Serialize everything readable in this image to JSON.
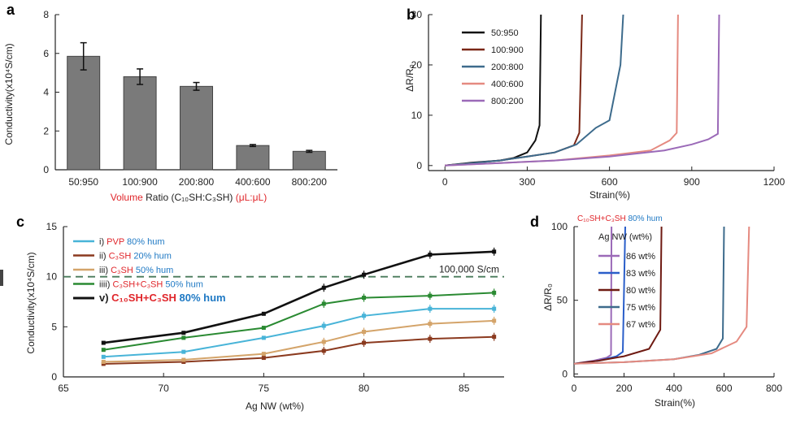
{
  "chart_data": [
    {
      "panel": "a",
      "type": "bar",
      "categories": [
        "50:950",
        "100:900",
        "200:800",
        "400:600",
        "800:200"
      ],
      "values": [
        5.85,
        4.8,
        4.3,
        1.25,
        0.95
      ],
      "errors": [
        0.7,
        0.4,
        0.2,
        0.05,
        0.05
      ],
      "ylabel": "Conductivity(x10⁴S/cm)",
      "xlabel_parts": [
        {
          "text": "Volume",
          "color": "#e0262b"
        },
        {
          "text": " Ratio (C₁₀SH:C₃SH) ",
          "color": "#222222"
        },
        {
          "text": "(μL:μL)",
          "color": "#e0262b"
        }
      ],
      "ylim": [
        0,
        8
      ],
      "yticks": [
        0,
        2,
        4,
        6,
        8
      ],
      "bar_color": "#7a7a7a"
    },
    {
      "panel": "b",
      "type": "line",
      "xlabel": "Strain(%)",
      "ylabel": "ΔR/R₀",
      "xlim": [
        -60,
        1200
      ],
      "ylim": [
        -1,
        30
      ],
      "xticks": [
        0,
        300,
        600,
        900,
        1200
      ],
      "yticks": [
        0,
        10,
        20,
        30
      ],
      "series": [
        {
          "name": "50:950",
          "color": "#111111",
          "points": [
            [
              0,
              0
            ],
            [
              100,
              0.6
            ],
            [
              200,
              1
            ],
            [
              250,
              1.5
            ],
            [
              300,
              2.6
            ],
            [
              330,
              5
            ],
            [
              345,
              8
            ],
            [
              350,
              30
            ]
          ]
        },
        {
          "name": "100:900",
          "color": "#7a2716",
          "points": [
            [
              0,
              0
            ],
            [
              100,
              0.5
            ],
            [
              200,
              1
            ],
            [
              300,
              1.8
            ],
            [
              400,
              2.6
            ],
            [
              470,
              4
            ],
            [
              490,
              6.5
            ],
            [
              500,
              30
            ]
          ]
        },
        {
          "name": "200:800",
          "color": "#3d6b8c",
          "points": [
            [
              0,
              0
            ],
            [
              100,
              0.5
            ],
            [
              200,
              1
            ],
            [
              300,
              1.8
            ],
            [
              400,
              2.6
            ],
            [
              480,
              4.2
            ],
            [
              550,
              7.5
            ],
            [
              600,
              9
            ],
            [
              640,
              20
            ],
            [
              650,
              30
            ]
          ]
        },
        {
          "name": "400:600",
          "color": "#e58a80",
          "points": [
            [
              0,
              0
            ],
            [
              200,
              0.5
            ],
            [
              400,
              1
            ],
            [
              600,
              2
            ],
            [
              750,
              3
            ],
            [
              820,
              5
            ],
            [
              845,
              6.5
            ],
            [
              850,
              30
            ]
          ]
        },
        {
          "name": "800:200",
          "color": "#9b6ab8",
          "points": [
            [
              0,
              0
            ],
            [
              200,
              0.5
            ],
            [
              400,
              1
            ],
            [
              600,
              1.8
            ],
            [
              800,
              3
            ],
            [
              900,
              4.2
            ],
            [
              960,
              5.2
            ],
            [
              995,
              6.3
            ],
            [
              1000,
              30
            ]
          ]
        }
      ]
    },
    {
      "panel": "c",
      "type": "line",
      "xlabel": "Ag NW (wt%)",
      "ylabel": "Conductivity(x10⁴S/cm)",
      "xlim": [
        65,
        87
      ],
      "ylim": [
        0,
        15
      ],
      "xticks": [
        65,
        70,
        75,
        80,
        85
      ],
      "yticks": [
        0,
        5,
        10,
        15
      ],
      "x": [
        67,
        71,
        75,
        78,
        80,
        83.3,
        86.5
      ],
      "reference": {
        "y": 10,
        "label": "100,000 S/cm",
        "color": "#4a7a5c"
      },
      "series": [
        {
          "id": "i",
          "label_parts": [
            {
              "text": "PVP",
              "color": "#e0262b"
            },
            {
              "text": " 80% hum",
              "color": "#1f79c4"
            }
          ],
          "color": "#48b4d8",
          "values": [
            2,
            2.5,
            3.9,
            5.1,
            6.1,
            6.8,
            6.8
          ]
        },
        {
          "id": "ii",
          "label_parts": [
            {
              "text": "C₃SH",
              "color": "#e0262b"
            },
            {
              "text": " 20% hum",
              "color": "#1f79c4"
            }
          ],
          "color": "#8b3a1f",
          "values": [
            1.3,
            1.5,
            1.9,
            2.6,
            3.4,
            3.8,
            4
          ]
        },
        {
          "id": "iii",
          "label_parts": [
            {
              "text": "C₃SH",
              "color": "#e0262b"
            },
            {
              "text": " 50% hum",
              "color": "#1f79c4"
            }
          ],
          "color": "#d4a46a",
          "values": [
            1.5,
            1.7,
            2.3,
            3.5,
            4.5,
            5.3,
            5.6
          ]
        },
        {
          "id": "iiii",
          "label_parts": [
            {
              "text": "C₃SH+C₃SH",
              "color": "#e0262b"
            },
            {
              "text": " 50% hum",
              "color": "#1f79c4"
            }
          ],
          "color": "#2a8a32",
          "values": [
            2.7,
            3.9,
            4.9,
            7.3,
            7.9,
            8.1,
            8.4
          ]
        },
        {
          "id": "v",
          "label_parts": [
            {
              "text": "C₁₀SH+C₃SH",
              "color": "#e0262b"
            },
            {
              "text": " 80% hum",
              "color": "#1f79c4"
            }
          ],
          "color": "#111111",
          "bold": true,
          "values": [
            3.4,
            4.4,
            6.3,
            8.9,
            10.2,
            12.2,
            12.5
          ]
        }
      ]
    },
    {
      "panel": "d",
      "type": "line",
      "title_parts": [
        {
          "text": "C₁₀SH+C₃SH",
          "color": "#e0262b"
        },
        {
          "text": " 80% hum",
          "color": "#1f79c4"
        }
      ],
      "legend_title": "Ag NW (wt%)",
      "xlabel": "Strain(%)",
      "ylabel": "ΔR/R₀",
      "xlim": [
        0,
        800
      ],
      "ylim": [
        -2,
        100
      ],
      "xticks": [
        0,
        200,
        400,
        600,
        800
      ],
      "yticks": [
        0,
        50,
        100
      ],
      "series": [
        {
          "name": "86 wt%",
          "color": "#9b6ab8",
          "points": [
            [
              0,
              7
            ],
            [
              80,
              9
            ],
            [
              130,
              11
            ],
            [
              148,
              13
            ],
            [
              150,
              100
            ]
          ]
        },
        {
          "name": "83 wt%",
          "color": "#2a5ec9",
          "points": [
            [
              0,
              7
            ],
            [
              100,
              9
            ],
            [
              170,
              12
            ],
            [
              195,
              15
            ],
            [
              205,
              100
            ]
          ]
        },
        {
          "name": "80 wt%",
          "color": "#6e1a12",
          "points": [
            [
              0,
              7
            ],
            [
              100,
              9
            ],
            [
              200,
              12
            ],
            [
              300,
              17
            ],
            [
              345,
              30
            ],
            [
              350,
              100
            ]
          ]
        },
        {
          "name": "75 wt%",
          "color": "#3d6b8c",
          "points": [
            [
              0,
              7
            ],
            [
              200,
              8
            ],
            [
              400,
              10
            ],
            [
              500,
              13
            ],
            [
              570,
              17
            ],
            [
              595,
              24
            ],
            [
              600,
              100
            ]
          ]
        },
        {
          "name": "67 wt%",
          "color": "#e58a80",
          "points": [
            [
              0,
              7
            ],
            [
              200,
              8
            ],
            [
              400,
              10
            ],
            [
              550,
              14
            ],
            [
              650,
              22
            ],
            [
              690,
              32
            ],
            [
              700,
              100
            ]
          ]
        }
      ]
    }
  ]
}
